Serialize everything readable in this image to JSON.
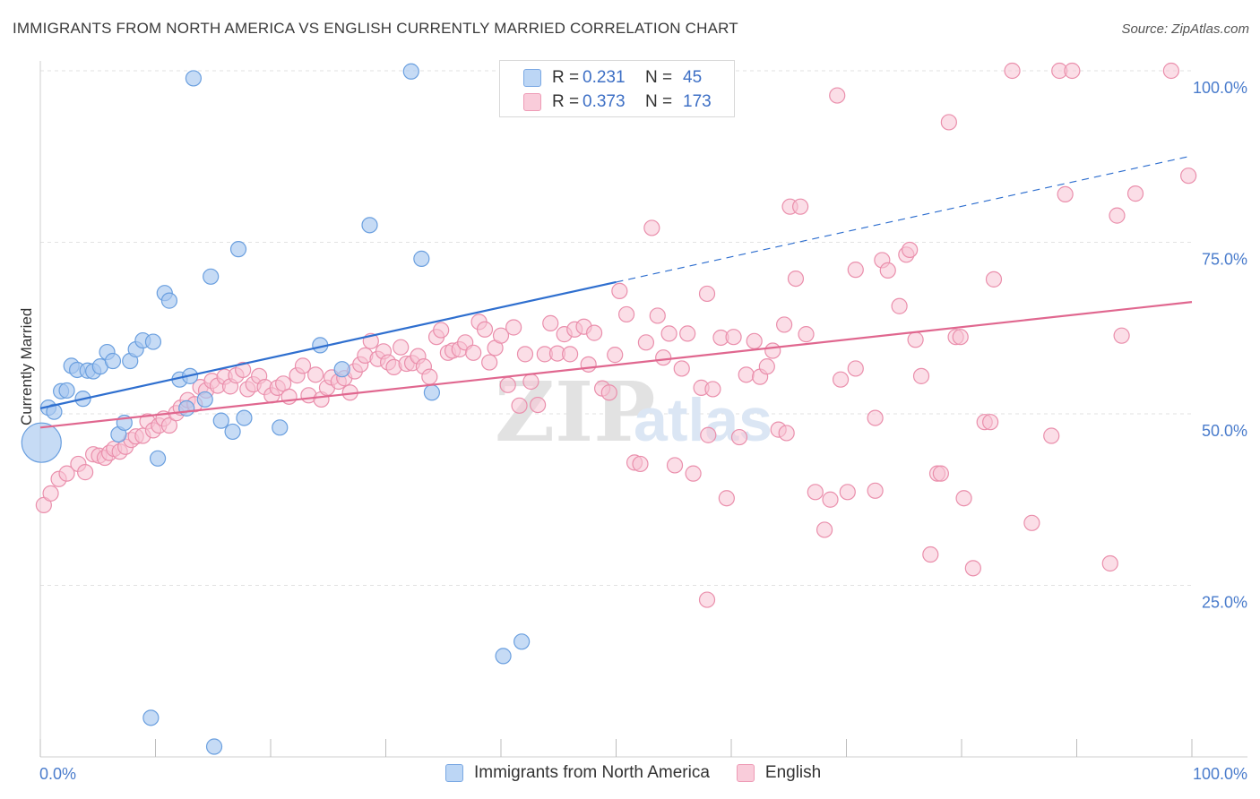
{
  "title": "IMMIGRANTS FROM NORTH AMERICA VS ENGLISH CURRENTLY MARRIED CORRELATION CHART",
  "source": "Source: ZipAtlas.com",
  "colors": {
    "blue_fill": "#a8c8f0",
    "blue_stroke": "#6a9fdf",
    "blue_line": "#2f6fcf",
    "pink_fill": "#f7c3d3",
    "pink_stroke": "#ea8fac",
    "pink_line": "#e0678f",
    "grid": "#e2e2e2",
    "tick_label": "#4a7ccc"
  },
  "legend": {
    "rows": [
      {
        "r_label": "R =",
        "r_value": "0.231",
        "n_label": "N =",
        "n_value": "45"
      },
      {
        "r_label": "R =",
        "r_value": "0.373",
        "n_label": "N =",
        "n_value": "173"
      }
    ]
  },
  "bottom_legend": [
    "Immigrants from North America",
    "English"
  ],
  "watermark": {
    "zip": "ZIP",
    "atlas": "atlas"
  },
  "chart_data": {
    "type": "scatter",
    "title": "IMMIGRANTS FROM NORTH AMERICA VS ENGLISH CURRENTLY MARRIED CORRELATION CHART",
    "xlabel": "",
    "ylabel": "Currently Married",
    "xlim": [
      0,
      100
    ],
    "ylim": [
      0,
      100
    ],
    "x_tick_labels": [
      "0.0%",
      "100.0%"
    ],
    "y_ticks": [
      25,
      50,
      75,
      100
    ],
    "y_tick_labels": [
      "25.0%",
      "50.0%",
      "75.0%",
      "100.0%"
    ],
    "grid": true,
    "series": [
      {
        "name": "Immigrants from North America",
        "R": 0.231,
        "N": 45,
        "trend": {
          "x0": 0,
          "y0": 50.8,
          "x1": 100,
          "y1": 87.6,
          "solid_until_x": 50
        },
        "points": [
          [
            0.1,
            45.8,
            3
          ],
          [
            0.7,
            50.9,
            1
          ],
          [
            1.2,
            50.3,
            1
          ],
          [
            1.8,
            53.3,
            1
          ],
          [
            2.3,
            53.4,
            1
          ],
          [
            2.7,
            57.0,
            1
          ],
          [
            3.2,
            56.4,
            1
          ],
          [
            3.7,
            52.2,
            1
          ],
          [
            4.1,
            56.3,
            1
          ],
          [
            4.6,
            56.2,
            1
          ],
          [
            5.2,
            56.9,
            1
          ],
          [
            5.8,
            59.0,
            1
          ],
          [
            6.3,
            57.7,
            1
          ],
          [
            6.8,
            47.0,
            1
          ],
          [
            7.3,
            48.7,
            1
          ],
          [
            7.8,
            57.7,
            1
          ],
          [
            8.3,
            59.4,
            1
          ],
          [
            8.9,
            60.7,
            1
          ],
          [
            9.8,
            60.5,
            1
          ],
          [
            10.2,
            43.5,
            1
          ],
          [
            10.8,
            67.6,
            1
          ],
          [
            11.2,
            66.5,
            1
          ],
          [
            12.1,
            55.0,
            1
          ],
          [
            12.7,
            50.8,
            1
          ],
          [
            13.0,
            55.5,
            1
          ],
          [
            13.3,
            98.9,
            1
          ],
          [
            14.3,
            52.1,
            1
          ],
          [
            14.8,
            70.0,
            1
          ],
          [
            15.7,
            49.0,
            1
          ],
          [
            16.7,
            47.4,
            1
          ],
          [
            17.2,
            74.0,
            1
          ],
          [
            17.7,
            49.4,
            1
          ],
          [
            20.8,
            48.0,
            1
          ],
          [
            24.3,
            60.0,
            1
          ],
          [
            26.2,
            56.5,
            1
          ],
          [
            28.6,
            77.5,
            1
          ],
          [
            32.2,
            99.9,
            1
          ],
          [
            33.1,
            72.6,
            1
          ],
          [
            34.0,
            53.1,
            1
          ],
          [
            40.2,
            14.7,
            1
          ],
          [
            41.8,
            16.8,
            1
          ],
          [
            9.6,
            5.7,
            1
          ],
          [
            15.1,
            1.5,
            1
          ]
        ]
      },
      {
        "name": "English",
        "R": 0.373,
        "N": 173,
        "trend": {
          "x0": 0,
          "y0": 48.0,
          "x1": 100,
          "y1": 66.3
        },
        "points": [
          [
            0.3,
            36.7
          ],
          [
            0.9,
            38.4
          ],
          [
            1.6,
            40.5
          ],
          [
            2.3,
            41.3
          ],
          [
            3.3,
            42.7
          ],
          [
            3.9,
            41.5
          ],
          [
            4.6,
            44.1
          ],
          [
            5.1,
            43.9
          ],
          [
            5.6,
            43.6
          ],
          [
            6.0,
            44.3
          ],
          [
            6.4,
            44.9
          ],
          [
            6.9,
            44.5
          ],
          [
            7.4,
            45.2
          ],
          [
            7.9,
            46.2
          ],
          [
            8.3,
            46.7
          ],
          [
            8.9,
            46.8
          ],
          [
            9.3,
            48.9
          ],
          [
            9.8,
            47.6
          ],
          [
            10.3,
            48.3
          ],
          [
            10.7,
            49.3
          ],
          [
            11.2,
            48.3
          ],
          [
            11.8,
            50.1
          ],
          [
            12.2,
            50.9
          ],
          [
            12.8,
            52.0
          ],
          [
            13.4,
            51.4
          ],
          [
            13.9,
            53.9
          ],
          [
            14.4,
            53.4
          ],
          [
            14.9,
            54.8
          ],
          [
            15.4,
            54.1
          ],
          [
            16.0,
            55.4
          ],
          [
            16.5,
            54.0
          ],
          [
            17.0,
            55.6
          ],
          [
            17.6,
            56.4
          ],
          [
            18.0,
            53.6
          ],
          [
            18.5,
            54.3
          ],
          [
            19.0,
            55.5
          ],
          [
            19.5,
            53.9
          ],
          [
            20.1,
            52.7
          ],
          [
            20.6,
            53.8
          ],
          [
            21.1,
            54.4
          ],
          [
            21.6,
            52.5
          ],
          [
            22.3,
            55.6
          ],
          [
            22.8,
            57.0
          ],
          [
            23.3,
            52.7
          ],
          [
            23.9,
            55.7
          ],
          [
            24.4,
            52.1
          ],
          [
            24.9,
            53.8
          ],
          [
            25.3,
            55.3
          ],
          [
            25.9,
            54.7
          ],
          [
            26.4,
            55.2
          ],
          [
            26.9,
            53.1
          ],
          [
            27.3,
            56.2
          ],
          [
            27.8,
            57.2
          ],
          [
            28.2,
            58.5
          ],
          [
            28.7,
            60.6
          ],
          [
            29.3,
            58.0
          ],
          [
            29.8,
            59.1
          ],
          [
            30.2,
            57.5
          ],
          [
            30.7,
            56.8
          ],
          [
            31.3,
            59.7
          ],
          [
            31.8,
            57.3
          ],
          [
            32.3,
            57.4
          ],
          [
            32.8,
            58.4
          ],
          [
            33.3,
            56.9
          ],
          [
            33.8,
            55.4
          ],
          [
            34.4,
            61.2
          ],
          [
            34.8,
            62.2
          ],
          [
            35.4,
            58.9
          ],
          [
            35.8,
            59.2
          ],
          [
            36.4,
            59.4
          ],
          [
            36.9,
            60.4
          ],
          [
            37.6,
            58.9
          ],
          [
            38.1,
            63.4
          ],
          [
            38.6,
            62.3
          ],
          [
            39.0,
            57.5
          ],
          [
            39.5,
            59.6
          ],
          [
            40.0,
            61.4
          ],
          [
            40.6,
            54.2
          ],
          [
            41.1,
            62.6
          ],
          [
            41.6,
            51.2
          ],
          [
            42.1,
            58.7
          ],
          [
            42.6,
            54.7
          ],
          [
            43.2,
            51.3
          ],
          [
            43.8,
            58.7
          ],
          [
            44.3,
            63.2
          ],
          [
            44.9,
            58.8
          ],
          [
            45.5,
            61.6
          ],
          [
            46.0,
            58.7
          ],
          [
            46.4,
            62.3
          ],
          [
            47.2,
            62.7
          ],
          [
            47.6,
            57.2
          ],
          [
            48.1,
            61.8
          ],
          [
            48.8,
            53.7
          ],
          [
            49.4,
            53.1
          ],
          [
            49.9,
            58.6
          ],
          [
            50.3,
            67.9
          ],
          [
            50.9,
            64.5
          ],
          [
            51.6,
            42.9
          ],
          [
            52.1,
            42.7
          ],
          [
            52.6,
            60.4
          ],
          [
            53.1,
            77.1
          ],
          [
            53.6,
            64.3
          ],
          [
            54.1,
            58.2
          ],
          [
            54.6,
            61.7
          ],
          [
            55.1,
            42.5
          ],
          [
            55.7,
            56.6
          ],
          [
            56.2,
            61.7
          ],
          [
            56.7,
            41.3
          ],
          [
            57.4,
            53.8
          ],
          [
            58.0,
            46.9
          ],
          [
            58.4,
            53.6
          ],
          [
            59.1,
            61.1
          ],
          [
            59.6,
            37.7
          ],
          [
            60.2,
            61.2
          ],
          [
            60.7,
            46.6
          ],
          [
            61.3,
            55.7
          ],
          [
            62.0,
            60.6
          ],
          [
            62.5,
            55.4
          ],
          [
            63.1,
            56.9
          ],
          [
            63.6,
            59.2
          ],
          [
            64.1,
            47.7
          ],
          [
            64.6,
            63.0
          ],
          [
            65.1,
            80.2
          ],
          [
            65.6,
            69.7
          ],
          [
            66.0,
            80.2
          ],
          [
            66.5,
            61.6
          ],
          [
            67.3,
            38.6
          ],
          [
            68.1,
            33.1
          ],
          [
            68.6,
            37.5
          ],
          [
            69.2,
            96.4
          ],
          [
            69.5,
            55.0
          ],
          [
            70.1,
            38.6
          ],
          [
            70.8,
            56.6
          ],
          [
            70.8,
            71.0
          ],
          [
            72.5,
            38.8
          ],
          [
            72.5,
            49.4
          ],
          [
            73.1,
            72.4
          ],
          [
            73.6,
            70.9
          ],
          [
            74.6,
            65.7
          ],
          [
            75.2,
            73.2
          ],
          [
            75.5,
            73.9
          ],
          [
            76.0,
            60.8
          ],
          [
            76.5,
            55.5
          ],
          [
            77.3,
            29.5
          ],
          [
            77.9,
            41.3
          ],
          [
            78.2,
            41.3
          ],
          [
            78.9,
            92.5
          ],
          [
            79.5,
            61.2
          ],
          [
            79.9,
            61.2
          ],
          [
            80.2,
            37.7
          ],
          [
            81.0,
            27.5
          ],
          [
            82.0,
            48.8
          ],
          [
            82.5,
            48.8
          ],
          [
            82.8,
            69.6
          ],
          [
            84.4,
            100.0
          ],
          [
            86.1,
            34.1
          ],
          [
            87.8,
            46.8
          ],
          [
            88.5,
            100.0
          ],
          [
            89.0,
            82.0
          ],
          [
            89.6,
            100.0
          ],
          [
            92.9,
            28.2
          ],
          [
            93.5,
            78.9
          ],
          [
            93.9,
            61.4
          ],
          [
            95.1,
            82.1
          ],
          [
            98.2,
            100.0
          ],
          [
            99.7,
            84.7
          ],
          [
            64.8,
            47.2
          ],
          [
            57.9,
            22.9
          ],
          [
            57.9,
            67.5
          ]
        ]
      }
    ]
  },
  "axis": {
    "y_label": "Currently Married",
    "x_left": "0.0%",
    "x_right": "100.0%"
  }
}
